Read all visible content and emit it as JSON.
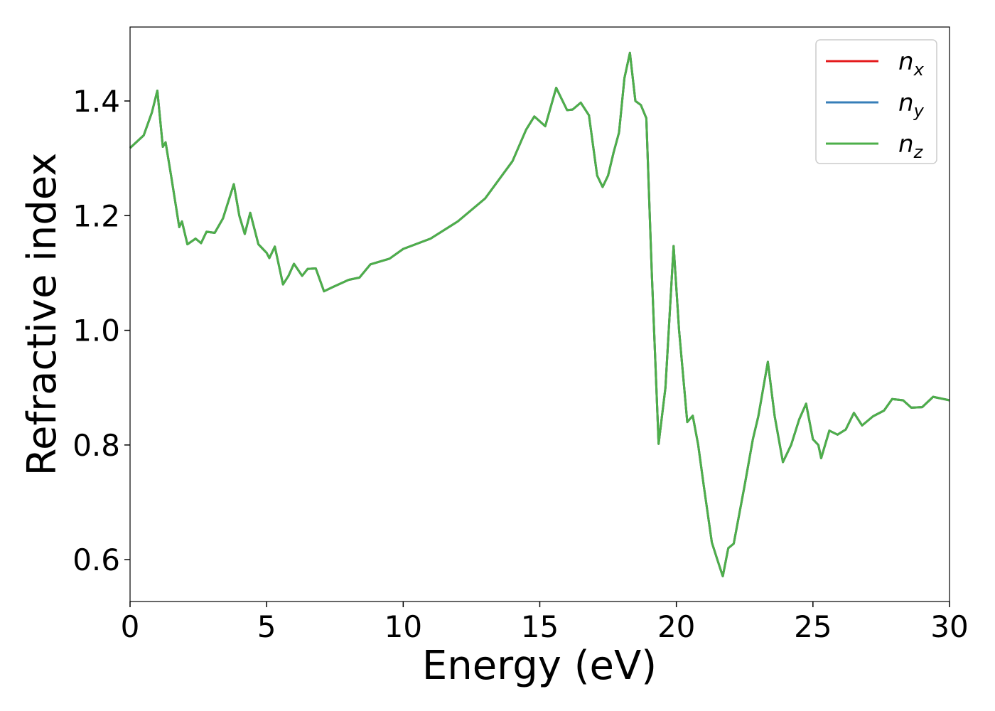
{
  "chart_data": {
    "type": "line",
    "xlabel": "Energy (eV)",
    "ylabel": "Refractive index",
    "xlim": [
      0,
      30
    ],
    "xticks": [
      0,
      5,
      10,
      15,
      20,
      25,
      30
    ],
    "ylim": [
      0.527,
      1.529
    ],
    "yticks": [
      {
        "value": 0.6,
        "label": "0.6"
      },
      {
        "value": 0.8,
        "label": "0.8"
      },
      {
        "value": 1.0,
        "label": "1.0"
      },
      {
        "value": 1.2,
        "label": "1.2"
      },
      {
        "value": 1.4,
        "label": "1.4"
      }
    ],
    "legend": "upper right",
    "grid": false,
    "x": [
      0,
      0.5,
      0.8,
      1.0,
      1.2,
      1.3,
      1.5,
      1.8,
      1.9,
      2.1,
      2.4,
      2.6,
      2.8,
      3.1,
      3.4,
      3.8,
      4.0,
      4.2,
      4.4,
      4.7,
      5.0,
      5.1,
      5.3,
      5.6,
      5.8,
      6.0,
      6.3,
      6.5,
      6.8,
      7.1,
      7.4,
      8.0,
      8.4,
      8.8,
      9.5,
      10,
      11,
      12,
      13,
      14,
      14.5,
      14.8,
      15.2,
      15.6,
      16.0,
      16.2,
      16.5,
      16.8,
      17.1,
      17.3,
      17.5,
      17.7,
      17.9,
      18.1,
      18.3,
      18.5,
      18.7,
      18.9,
      19.1,
      19.35,
      19.6,
      19.9,
      20.1,
      20.4,
      20.6,
      20.8,
      21.0,
      21.3,
      21.5,
      21.7,
      21.9,
      22.1,
      22.5,
      22.8,
      23.0,
      23.35,
      23.6,
      23.9,
      24.2,
      24.5,
      24.75,
      25.0,
      25.2,
      25.3,
      25.6,
      25.9,
      26.2,
      26.5,
      26.8,
      27.2,
      27.6,
      27.9,
      28.3,
      28.6,
      29.0,
      29.4,
      30.0
    ],
    "series": [
      {
        "name": "nx",
        "color": "#e41a1c",
        "values": [
          1.318,
          1.34,
          1.38,
          1.418,
          1.32,
          1.328,
          1.27,
          1.18,
          1.19,
          1.15,
          1.16,
          1.152,
          1.172,
          1.17,
          1.195,
          1.255,
          1.2,
          1.168,
          1.205,
          1.15,
          1.135,
          1.126,
          1.146,
          1.08,
          1.095,
          1.116,
          1.095,
          1.107,
          1.108,
          1.068,
          1.075,
          1.088,
          1.092,
          1.115,
          1.125,
          1.142,
          1.16,
          1.19,
          1.23,
          1.295,
          1.35,
          1.373,
          1.356,
          1.423,
          1.384,
          1.385,
          1.397,
          1.375,
          1.27,
          1.25,
          1.27,
          1.31,
          1.345,
          1.44,
          1.484,
          1.4,
          1.393,
          1.37,
          1.1,
          0.802,
          0.9,
          1.147,
          1.0,
          0.84,
          0.851,
          0.8,
          0.73,
          0.63,
          0.6,
          0.571,
          0.62,
          0.628,
          0.73,
          0.81,
          0.85,
          0.945,
          0.85,
          0.77,
          0.8,
          0.845,
          0.872,
          0.81,
          0.8,
          0.777,
          0.825,
          0.818,
          0.827,
          0.856,
          0.834,
          0.85,
          0.86,
          0.88,
          0.878,
          0.865,
          0.866,
          0.884,
          0.878
        ]
      },
      {
        "name": "ny",
        "color": "#377eb8",
        "values": [
          1.318,
          1.34,
          1.38,
          1.418,
          1.32,
          1.328,
          1.27,
          1.18,
          1.19,
          1.15,
          1.16,
          1.152,
          1.172,
          1.17,
          1.195,
          1.255,
          1.2,
          1.168,
          1.205,
          1.15,
          1.135,
          1.126,
          1.146,
          1.08,
          1.095,
          1.116,
          1.095,
          1.107,
          1.108,
          1.068,
          1.075,
          1.088,
          1.092,
          1.115,
          1.125,
          1.142,
          1.16,
          1.19,
          1.23,
          1.295,
          1.35,
          1.373,
          1.356,
          1.423,
          1.384,
          1.385,
          1.397,
          1.375,
          1.27,
          1.25,
          1.27,
          1.31,
          1.345,
          1.44,
          1.484,
          1.4,
          1.393,
          1.37,
          1.1,
          0.802,
          0.9,
          1.147,
          1.0,
          0.84,
          0.851,
          0.8,
          0.73,
          0.63,
          0.6,
          0.571,
          0.62,
          0.628,
          0.73,
          0.81,
          0.85,
          0.945,
          0.85,
          0.77,
          0.8,
          0.845,
          0.872,
          0.81,
          0.8,
          0.777,
          0.825,
          0.818,
          0.827,
          0.856,
          0.834,
          0.85,
          0.86,
          0.88,
          0.878,
          0.865,
          0.866,
          0.884,
          0.878
        ]
      },
      {
        "name": "nz",
        "color": "#4daf4a",
        "values": [
          1.318,
          1.34,
          1.38,
          1.418,
          1.32,
          1.328,
          1.27,
          1.18,
          1.19,
          1.15,
          1.16,
          1.152,
          1.172,
          1.17,
          1.195,
          1.255,
          1.2,
          1.168,
          1.205,
          1.15,
          1.135,
          1.126,
          1.146,
          1.08,
          1.095,
          1.116,
          1.095,
          1.107,
          1.108,
          1.068,
          1.075,
          1.088,
          1.092,
          1.115,
          1.125,
          1.142,
          1.16,
          1.19,
          1.23,
          1.295,
          1.35,
          1.373,
          1.356,
          1.423,
          1.384,
          1.385,
          1.397,
          1.375,
          1.27,
          1.25,
          1.27,
          1.31,
          1.345,
          1.44,
          1.484,
          1.4,
          1.393,
          1.37,
          1.1,
          0.802,
          0.9,
          1.147,
          1.0,
          0.84,
          0.851,
          0.8,
          0.73,
          0.63,
          0.6,
          0.571,
          0.62,
          0.628,
          0.73,
          0.81,
          0.85,
          0.945,
          0.85,
          0.77,
          0.8,
          0.845,
          0.872,
          0.81,
          0.8,
          0.777,
          0.825,
          0.818,
          0.827,
          0.856,
          0.834,
          0.85,
          0.86,
          0.88,
          0.878,
          0.865,
          0.866,
          0.884,
          0.878
        ]
      }
    ]
  }
}
